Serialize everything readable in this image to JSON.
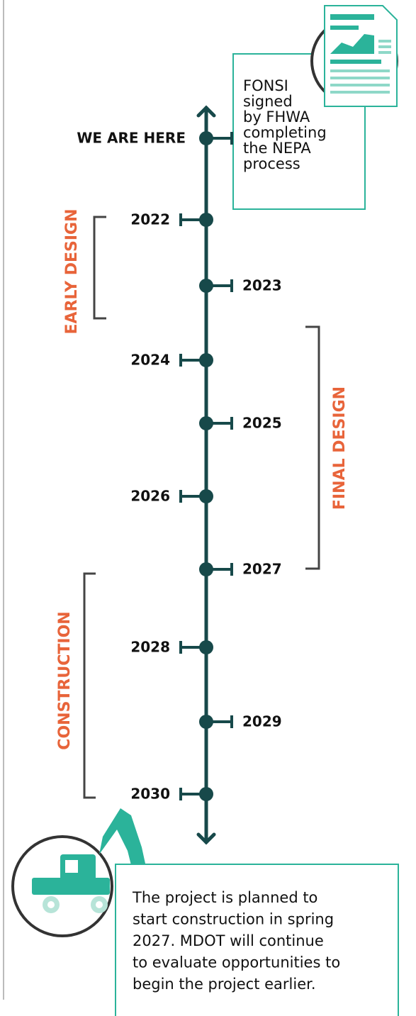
{
  "callout_top": {
    "lines": [
      "FONSI",
      "signed",
      "by FHWA",
      "completing",
      "the NEPA",
      "process"
    ]
  },
  "markers": [
    {
      "label": "WE ARE HERE"
    },
    {
      "label": "2022"
    },
    {
      "label": "2023"
    },
    {
      "label": "2024"
    },
    {
      "label": "2025"
    },
    {
      "label": "2026"
    },
    {
      "label": "2027"
    },
    {
      "label": "2028"
    },
    {
      "label": "2029"
    },
    {
      "label": "2030"
    }
  ],
  "phases": [
    {
      "label": "EARLY DESIGN"
    },
    {
      "label": "FINAL DESIGN"
    },
    {
      "label": "CONSTRUCTION"
    }
  ],
  "callout_bottom": {
    "lines": [
      "The project is planned to",
      "start construction in spring",
      "2027. MDOT will continue",
      "to evaluate opportunities to",
      "begin the project earlier."
    ]
  }
}
